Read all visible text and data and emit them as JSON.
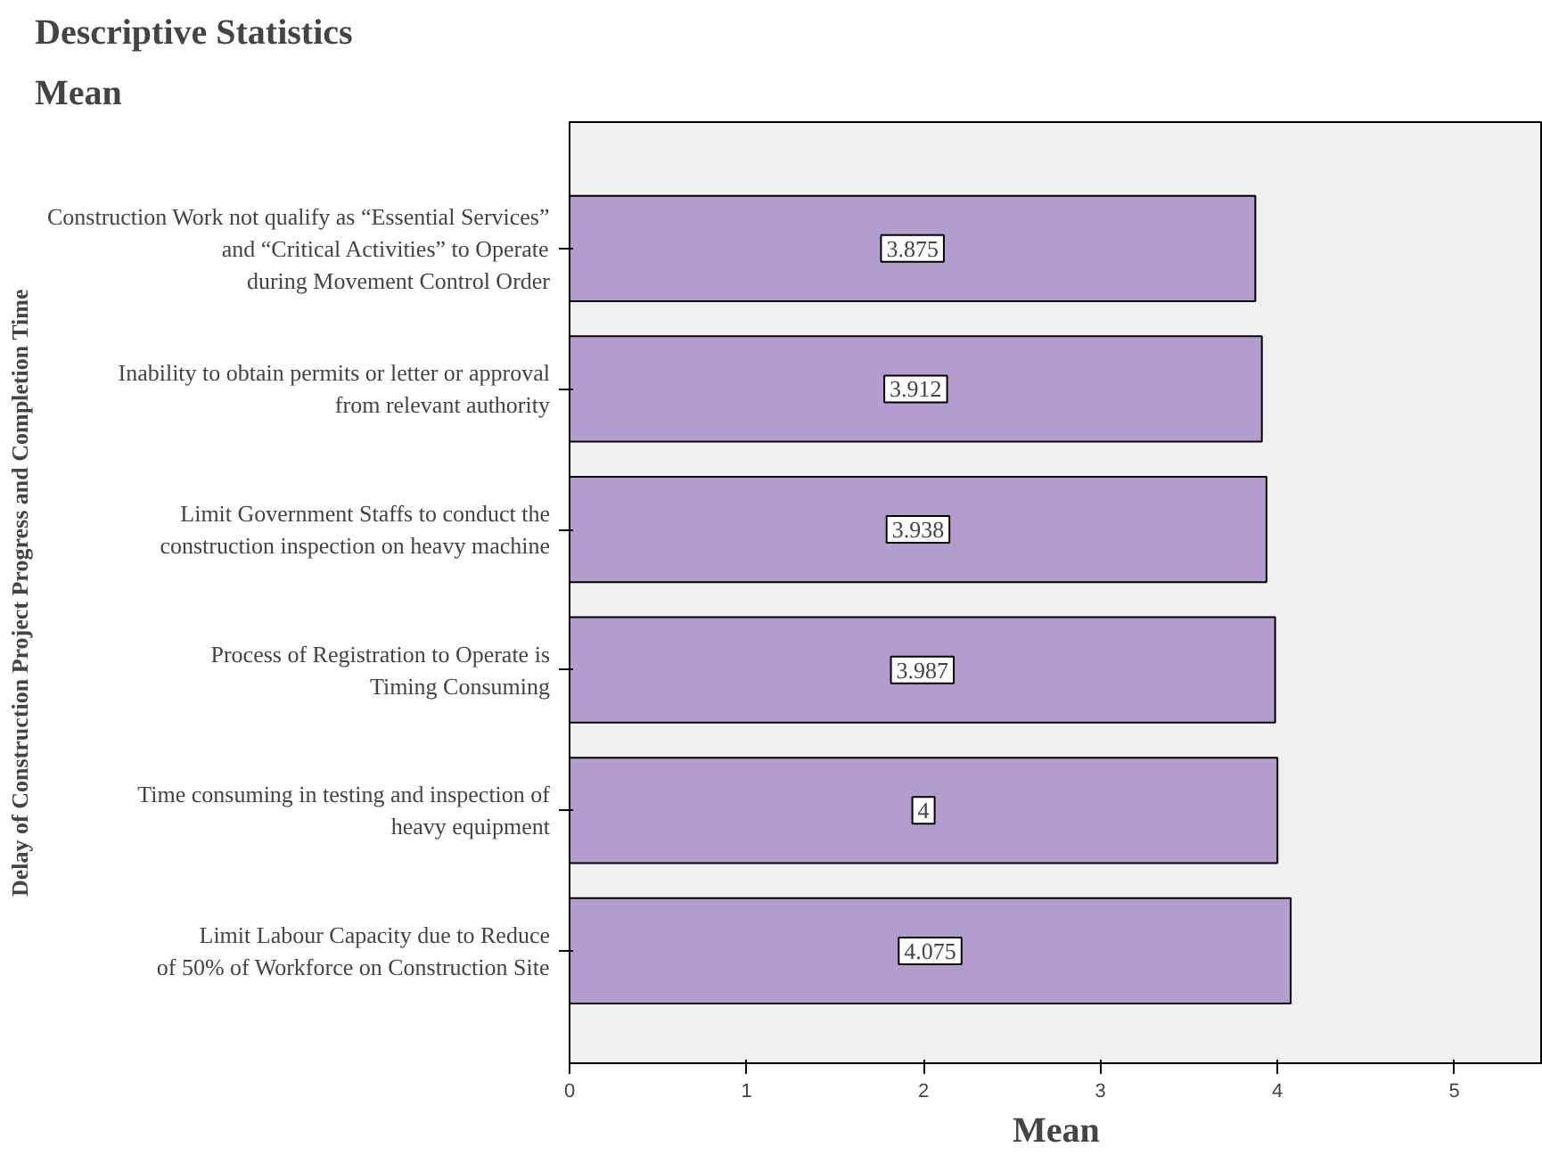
{
  "chart_data": {
    "type": "bar",
    "orientation": "horizontal",
    "title": "Descriptive Statistics",
    "subtitle": "Mean",
    "xlabel": "Mean",
    "ylabel": "Delay of Construction Project Progress and Completion Time",
    "categories": [
      "Construction Work not qualify as “Essential Services”\nand “Critical Activities” to Operate\nduring Movement Control Order",
      "Inability to obtain permits or letter or approval\nfrom relevant authority",
      "Limit Government Staffs to conduct the\nconstruction inspection on heavy machine",
      "Process of Registration to Operate is\nTiming Consuming",
      "Time consuming in testing and inspection of\nheavy equipment",
      "Limit Labour Capacity due to Reduce\nof 50% of Workforce on Construction Site"
    ],
    "values": [
      3.875,
      3.912,
      3.938,
      3.987,
      4,
      4.075
    ],
    "color": "#b39dcf",
    "xlim": [
      0,
      5.5
    ],
    "xticks": [
      0,
      1,
      2,
      3,
      4,
      5
    ],
    "grid": false,
    "data_labels": true
  }
}
